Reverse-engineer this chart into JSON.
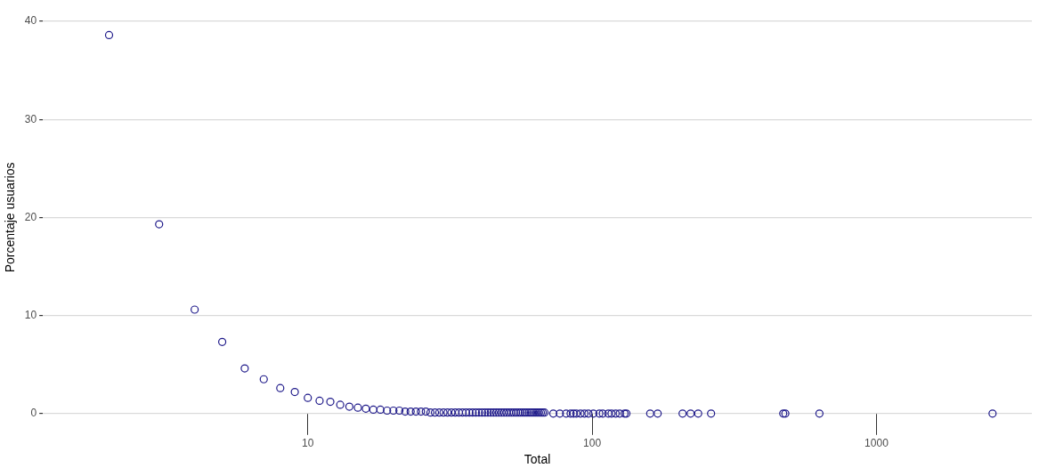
{
  "chart_data": {
    "type": "scatter",
    "xlabel": "Total",
    "ylabel": "Porcentaje usuarios",
    "log": "x",
    "grid": "y",
    "marker": "circle",
    "xlim": [
      1.17,
      3520
    ],
    "xticks": [
      10,
      100,
      1000
    ],
    "ylim": [
      0,
      40
    ],
    "yticks": [
      0,
      10,
      20,
      30,
      40
    ],
    "x": [
      2,
      3,
      4,
      5,
      6,
      7,
      8,
      9,
      10,
      11,
      12,
      13,
      14,
      15,
      16,
      17,
      18,
      19,
      20,
      21,
      22,
      23,
      24,
      25,
      26,
      27,
      28,
      29,
      30,
      31,
      32,
      33,
      34,
      35,
      36,
      37,
      38,
      39,
      40,
      41,
      42,
      43,
      44,
      45,
      46,
      47,
      48,
      49,
      50,
      51,
      52,
      53,
      54,
      55,
      56,
      57,
      58,
      59,
      60,
      61,
      62,
      63,
      64,
      65,
      66,
      67,
      68,
      73,
      77,
      81,
      84,
      86,
      88,
      91,
      94,
      97,
      101,
      106,
      109,
      114,
      117,
      121,
      125,
      130,
      132,
      160,
      170,
      208,
      222,
      236,
      262,
      470,
      478,
      630,
      2560
    ],
    "series": [
      {
        "color": "#1f1a8a",
        "values": [
          38.6,
          19.3,
          10.6,
          7.3,
          4.6,
          3.5,
          2.6,
          2.2,
          1.6,
          1.3,
          1.2,
          0.9,
          0.7,
          0.6,
          0.5,
          0.4,
          0.4,
          0.3,
          0.3,
          0.3,
          0.2,
          0.2,
          0.2,
          0.2,
          0.2,
          0.1,
          0.1,
          0.1,
          0.1,
          0.1,
          0.1,
          0.1,
          0.1,
          0.1,
          0.1,
          0.1,
          0.1,
          0.1,
          0.1,
          0.1,
          0.1,
          0.1,
          0.1,
          0.1,
          0.1,
          0.1,
          0.1,
          0.1,
          0.1,
          0.1,
          0.1,
          0.1,
          0.1,
          0.1,
          0.1,
          0.1,
          0.1,
          0.1,
          0.1,
          0.1,
          0.1,
          0.1,
          0.1,
          0.1,
          0.1,
          0.1,
          0.1,
          0,
          0,
          0,
          0,
          0,
          0,
          0,
          0,
          0,
          0,
          0,
          0,
          0,
          0,
          0,
          0,
          0,
          0,
          0,
          0,
          0,
          0,
          0,
          0,
          0,
          0,
          0,
          0
        ]
      }
    ]
  }
}
